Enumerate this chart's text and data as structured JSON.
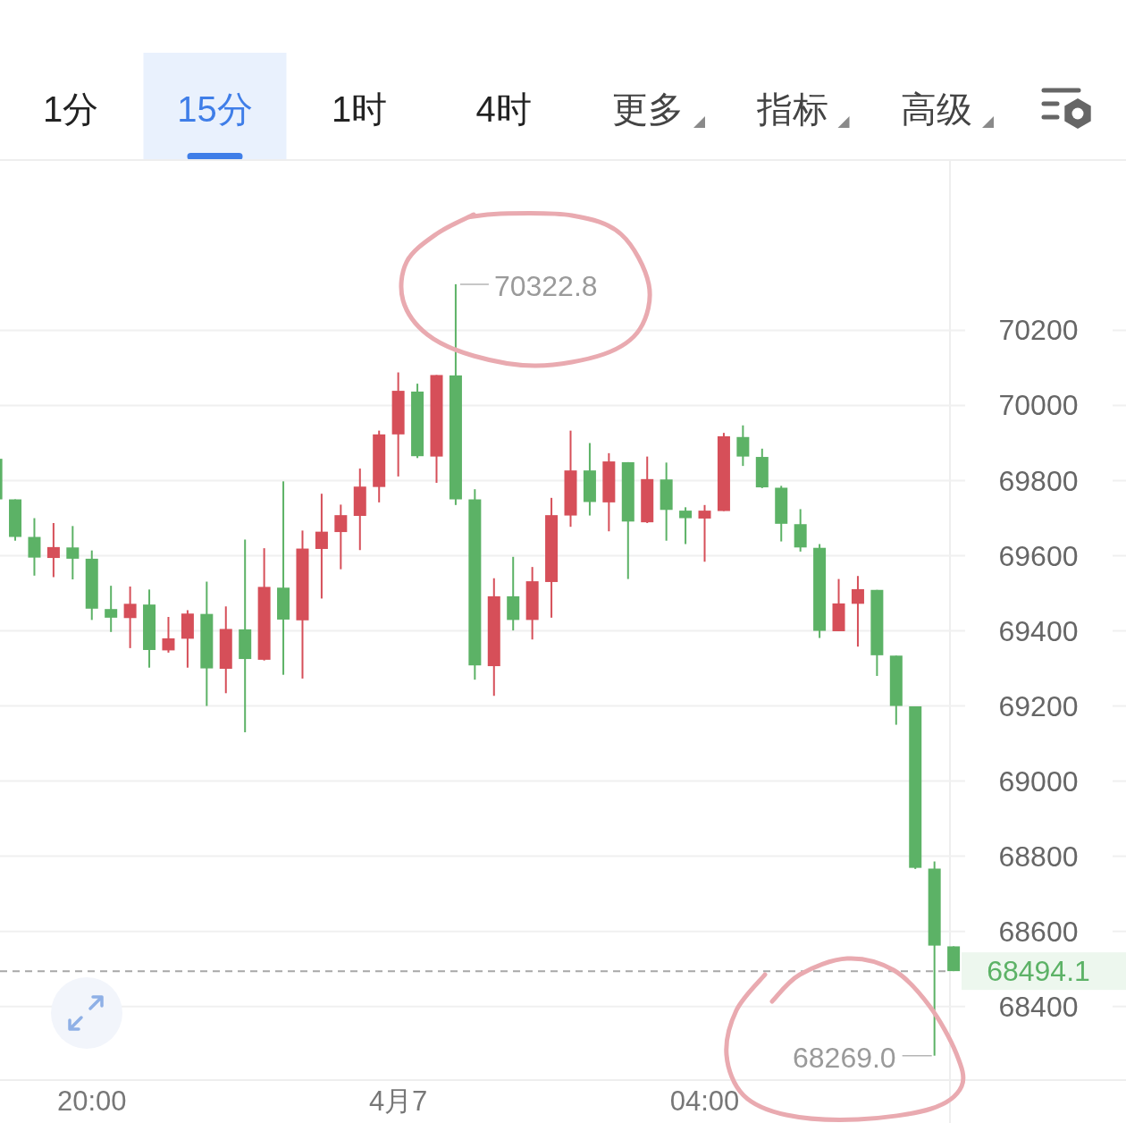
{
  "chart_data": {
    "type": "candlestick",
    "categories": [
      null,
      null,
      null,
      null,
      null,
      "20:00",
      null,
      null,
      null,
      null,
      null,
      null,
      null,
      null,
      null,
      null,
      null,
      null,
      null,
      null,
      null,
      "4月7",
      null,
      null,
      null,
      null,
      null,
      null,
      null,
      null,
      null,
      null,
      null,
      null,
      null,
      null,
      null,
      "04:00",
      null,
      null,
      null,
      null,
      null,
      null,
      null,
      null,
      null,
      null,
      null,
      null,
      null
    ],
    "ohlc": [
      [
        69858,
        69858,
        69750,
        69750
      ],
      [
        69750,
        69750,
        69640,
        69650
      ],
      [
        69650,
        69700,
        69547,
        69595
      ],
      [
        69594,
        69687,
        69543,
        69623
      ],
      [
        69622,
        69679,
        69537,
        69592
      ],
      [
        69592,
        69614,
        69429,
        69459
      ],
      [
        69458,
        69520,
        69397,
        69435
      ],
      [
        69434,
        69518,
        69354,
        69472
      ],
      [
        69470,
        69510,
        69302,
        69349
      ],
      [
        69348,
        69437,
        69342,
        69380
      ],
      [
        69379,
        69455,
        69302,
        69446
      ],
      [
        69445,
        69531,
        69200,
        69300
      ],
      [
        69299,
        69465,
        69234,
        69405
      ],
      [
        69404,
        69643,
        69130,
        69325
      ],
      [
        69323,
        69620,
        69321,
        69517
      ],
      [
        69515,
        69798,
        69283,
        69430
      ],
      [
        69428,
        69667,
        69273,
        69619
      ],
      [
        69618,
        69765,
        69486,
        69664
      ],
      [
        69663,
        69736,
        69564,
        69708
      ],
      [
        69706,
        69832,
        69615,
        69784
      ],
      [
        69783,
        69933,
        69742,
        69923
      ],
      [
        69923,
        70088,
        69811,
        70039
      ],
      [
        70037,
        70058,
        69860,
        69865
      ],
      [
        69864,
        70081,
        69794,
        70081
      ],
      [
        70080,
        70322.8,
        69735,
        69750
      ],
      [
        69750,
        69777,
        69270,
        69308
      ],
      [
        69306,
        69540,
        69227,
        69492
      ],
      [
        69492,
        69597,
        69401,
        69429
      ],
      [
        69429,
        69570,
        69377,
        69532
      ],
      [
        69530,
        69754,
        69435,
        69708
      ],
      [
        69707,
        69933,
        69677,
        69827
      ],
      [
        69827,
        69900,
        69707,
        69743
      ],
      [
        69742,
        69873,
        69665,
        69851
      ],
      [
        69849,
        69849,
        69538,
        69691
      ],
      [
        69689,
        69864,
        69687,
        69804
      ],
      [
        69803,
        69848,
        69640,
        69722
      ],
      [
        69720,
        69729,
        69631,
        69700
      ],
      [
        69699,
        69735,
        69584,
        69720
      ],
      [
        69719,
        69927,
        69719,
        69918
      ],
      [
        69916,
        69947,
        69839,
        69864
      ],
      [
        69863,
        69885,
        69780,
        69782
      ],
      [
        69781,
        69786,
        69638,
        69685
      ],
      [
        69684,
        69724,
        69611,
        69622
      ],
      [
        69621,
        69631,
        69381,
        69400
      ],
      [
        69399,
        69538,
        69399,
        69473
      ],
      [
        69472,
        69546,
        69358,
        69511
      ],
      [
        69509,
        69509,
        69280,
        69335
      ],
      [
        69334,
        69334,
        69150,
        69200
      ],
      [
        69199,
        69199,
        68766,
        68769
      ],
      [
        68767,
        68786,
        68269.0,
        68562
      ],
      [
        68560,
        68560,
        68494.1,
        68494.1
      ]
    ],
    "colors": [
      "#5cb266",
      "#5cb266",
      "#5cb266",
      "#d64f59",
      "#5cb266",
      "#5cb266",
      "#5cb266",
      "#d64f59",
      "#5cb266",
      "#d64f59",
      "#d64f59",
      "#5cb266",
      "#d64f59",
      "#5cb266",
      "#d64f59",
      "#5cb266",
      "#d64f59",
      "#d64f59",
      "#d64f59",
      "#d64f59",
      "#d64f59",
      "#d64f59",
      "#5cb266",
      "#d64f59",
      "#5cb266",
      "#5cb266",
      "#d64f59",
      "#5cb266",
      "#d64f59",
      "#d64f59",
      "#d64f59",
      "#5cb266",
      "#d64f59",
      "#5cb266",
      "#d64f59",
      "#5cb266",
      "#5cb266",
      "#d64f59",
      "#d64f59",
      "#5cb266",
      "#5cb266",
      "#5cb266",
      "#5cb266",
      "#5cb266",
      "#d64f59",
      "#d64f59",
      "#5cb266",
      "#5cb266",
      "#5cb266",
      "#5cb266",
      "#5cb266"
    ],
    "ylim": [
      68204,
      70651
    ],
    "yticks": [
      68400,
      68600,
      68800,
      69000,
      69200,
      69400,
      69600,
      69800,
      70000,
      70200
    ],
    "grid": "y",
    "ref_lines": [
      {
        "axis": "y",
        "value": 68494.1,
        "label": "68494.1",
        "color": "#a8a8a8",
        "line_style": "dashed"
      }
    ],
    "annotations": [
      "1分",
      "15分",
      "1时",
      "4时",
      "更多",
      "指标",
      "高级",
      "70322.8",
      "68269.0"
    ]
  }
}
